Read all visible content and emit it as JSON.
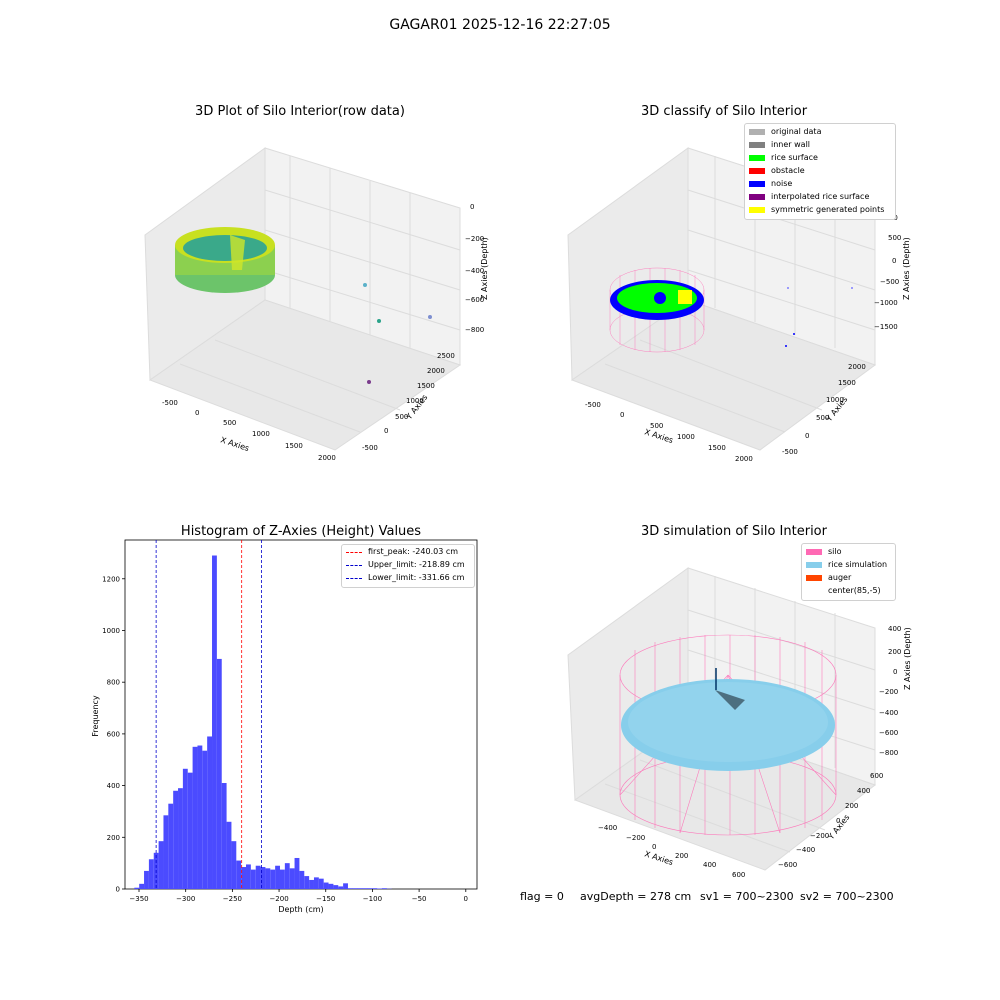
{
  "suptitle": "GAGAR01 2025-12-16 22:27:05",
  "panels": {
    "raw": {
      "title": "3D Plot of Silo Interior(row data)",
      "xlabel": "X Axies",
      "ylabel": "Y Axies",
      "zlabel": "Z Axies (Depth)",
      "xticks": [
        "-500",
        "0",
        "500",
        "1000",
        "1500",
        "2000"
      ],
      "yticks": [
        "-500",
        "0",
        "500",
        "1000",
        "1500",
        "2000",
        "2500"
      ],
      "zticks": [
        "0",
        "−200",
        "−400",
        "−600",
        "−800"
      ]
    },
    "classify": {
      "title": "3D classify of Silo Interior",
      "xlabel": "X Axies",
      "ylabel": "Y Axies",
      "zlabel": "Z Axies (Depth)",
      "xticks": [
        "-500",
        "0",
        "500",
        "1000",
        "1500",
        "2000"
      ],
      "yticks": [
        "-500",
        "0",
        "500",
        "1000",
        "1500",
        "2000"
      ],
      "zticks": [
        "1000",
        "500",
        "0",
        "−500",
        "−1000",
        "−1500"
      ],
      "legend": [
        {
          "label": "original data",
          "color": "#b0b0b0"
        },
        {
          "label": "inner wall",
          "color": "#808080"
        },
        {
          "label": "rice surface",
          "color": "#00ff00"
        },
        {
          "label": "obstacle",
          "color": "#ff0000"
        },
        {
          "label": "noise",
          "color": "#0000ff"
        },
        {
          "label": "interpolated rice surface",
          "color": "#800080"
        },
        {
          "label": "symmetric generated points",
          "color": "#ffff00"
        }
      ]
    },
    "sim": {
      "title": "3D simulation of Silo Interior",
      "xlabel": "X Axies",
      "ylabel": "Y Axies",
      "zlabel": "Z Axies (Depth)",
      "xticks": [
        "−400",
        "−200",
        "0",
        "200",
        "400",
        "600"
      ],
      "yticks": [
        "−600",
        "−400",
        "−200",
        "0",
        "200",
        "400",
        "600"
      ],
      "zticks": [
        "400",
        "200",
        "0",
        "−200",
        "−400",
        "−600",
        "−800"
      ],
      "legend": [
        {
          "label": "silo",
          "color": "#ff69b4"
        },
        {
          "label": "rice simulation",
          "color": "#87ceeb"
        },
        {
          "label": "auger",
          "color": "#ff4500"
        },
        {
          "label": "center(85,-5)",
          "color": "#ffffff"
        }
      ]
    }
  },
  "footer": {
    "flag": "flag = 0",
    "avg": "avgDepth = 278 cm",
    "sv1": "sv1 = 700~2300",
    "sv2": "sv2 = 700~2300"
  },
  "chart_data": [
    {
      "type": "bar",
      "title": "Histogram of Z-Axies (Height) Values",
      "xlabel": "Depth (cm)",
      "ylabel": "Frequency",
      "xlim": [
        -365,
        12
      ],
      "ylim": [
        0,
        1350
      ],
      "xticks": [
        -350,
        -300,
        -250,
        -200,
        -150,
        -100,
        -50,
        0
      ],
      "yticks": [
        0,
        200,
        400,
        600,
        800,
        1000,
        1200
      ],
      "bar_color": "#4b4bff",
      "bin_edges": [
        -355,
        -349.8,
        -344.6,
        -339.4,
        -334.2,
        -329,
        -323.8,
        -318.6,
        -313.4,
        -308.2,
        -303,
        -297.8,
        -292.6,
        -287.4,
        -282.2,
        -277,
        -271.8,
        -266.6,
        -261.4,
        -256.2,
        -251,
        -245.8,
        -240.6,
        -235.4,
        -230.2,
        -225,
        -219.8,
        -214.6,
        -209.4,
        -204.2,
        -199,
        -193.8,
        -188.6,
        -183.4,
        -178.2,
        -173,
        -167.8,
        -162.6,
        -157.4,
        -152.2,
        -147,
        -141.8,
        -136.6,
        -131.4,
        -126.2,
        -121,
        -115.8,
        -110.6,
        -105.4,
        -100.2,
        -95,
        -89.8,
        -84.6,
        -79.4,
        -74.2,
        -69,
        -63.8,
        -58.6,
        -53.4,
        -48.2,
        -43,
        -37.8,
        -32.6,
        -27.4,
        -22.2,
        -17,
        -11.8,
        -6.6,
        -1.4,
        3.8
      ],
      "values": [
        5,
        20,
        70,
        115,
        140,
        185,
        285,
        330,
        380,
        390,
        465,
        450,
        550,
        555,
        535,
        590,
        1290,
        890,
        410,
        260,
        185,
        110,
        85,
        95,
        75,
        90,
        85,
        80,
        75,
        90,
        75,
        100,
        80,
        120,
        70,
        50,
        35,
        45,
        40,
        25,
        20,
        15,
        10,
        22,
        3,
        3,
        3,
        3,
        3,
        3,
        2,
        3,
        1,
        0,
        0,
        0,
        0,
        0,
        0,
        0,
        0,
        0,
        0,
        0,
        0,
        0,
        0,
        0,
        0
      ],
      "vlines": [
        {
          "label": "first_peak: -240.03 cm",
          "x": -240.03,
          "color": "#ff0000"
        },
        {
          "label": "Upper_limit: -218.89 cm",
          "x": -218.89,
          "color": "#0000cc"
        },
        {
          "label": "Lower_limit: -331.66 cm",
          "x": -331.66,
          "color": "#0000cc"
        }
      ],
      "legend_position": "upper-right"
    }
  ]
}
